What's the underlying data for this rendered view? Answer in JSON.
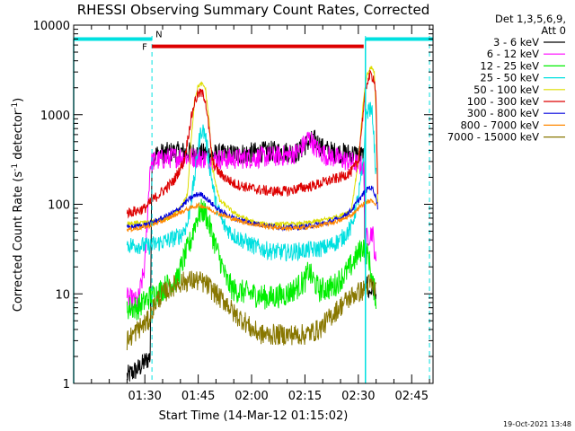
{
  "chart_data": {
    "type": "line",
    "title": "RHESSI Observing Summary Count Rates, Corrected",
    "xlabel": "Start Time (14-Mar-12 01:15:02)",
    "ylabel_main": "Corrected Count Rate (s",
    "ylabel_sup1": "-1",
    "ylabel_mid": " detector",
    "ylabel_sup2": "-1",
    "ylabel_end": ")",
    "yscale": "log",
    "ylim": [
      1,
      10000
    ],
    "xlim_minutes": [
      -5,
      96
    ],
    "x_units": "minutes after 01:15:02",
    "y_ticks": [
      {
        "value": 1,
        "label": "1"
      },
      {
        "value": 10,
        "label": "10"
      },
      {
        "value": 100,
        "label": "100"
      },
      {
        "value": 1000,
        "label": "1000"
      },
      {
        "value": 10000,
        "label": "10000"
      }
    ],
    "x_ticks": [
      {
        "minute": 15,
        "label": "01:30"
      },
      {
        "minute": 30,
        "label": "01:45"
      },
      {
        "minute": 45,
        "label": "02:00"
      },
      {
        "minute": 60,
        "label": "02:15"
      },
      {
        "minute": 75,
        "label": "02:30"
      },
      {
        "minute": 90,
        "label": "02:45"
      }
    ],
    "legend_title": [
      "Det 1,3,5,6,9,",
      "Att 0"
    ],
    "timestamp": "19-Oct-2021 13:48",
    "flags": {
      "night_label": "N",
      "night_color": "#00e0e0",
      "night_bars": [
        [
          -5,
          17
        ],
        [
          77,
          96
        ]
      ],
      "night_value": 7000,
      "flare_label": "F",
      "flare_color": "#dd0000",
      "flare_bar": [
        17,
        76.5
      ],
      "flare_value": 5800,
      "boundaries": [
        17,
        77,
        95
      ]
    },
    "series": [
      {
        "name": "3 - 6 keV",
        "color": "#000000",
        "noise": 0.12,
        "points": [
          [
            10,
            1.2
          ],
          [
            13.5,
            1.5
          ],
          [
            16.5,
            2
          ],
          [
            17,
            330
          ],
          [
            18,
            360
          ],
          [
            22,
            380
          ],
          [
            25,
            385
          ],
          [
            27,
            380
          ],
          [
            30,
            370
          ],
          [
            35,
            360
          ],
          [
            40,
            360
          ],
          [
            45,
            375
          ],
          [
            50,
            390
          ],
          [
            55,
            385
          ],
          [
            58,
            380
          ],
          [
            61,
            500
          ],
          [
            63,
            520
          ],
          [
            65,
            420
          ],
          [
            68,
            380
          ],
          [
            72,
            370
          ],
          [
            75,
            360
          ],
          [
            76.5,
            340
          ],
          [
            77,
            15
          ],
          [
            78,
            10
          ],
          [
            79,
            12
          ],
          [
            80,
            11
          ]
        ]
      },
      {
        "name": "6 - 12 keV",
        "color": "#ff00ff",
        "noise": 0.12,
        "points": [
          [
            10,
            9
          ],
          [
            13,
            8
          ],
          [
            15,
            20
          ],
          [
            16.5,
            280
          ],
          [
            17,
            300
          ],
          [
            22,
            330
          ],
          [
            25,
            340
          ],
          [
            28,
            335
          ],
          [
            32,
            325
          ],
          [
            35,
            320
          ],
          [
            40,
            320
          ],
          [
            45,
            330
          ],
          [
            50,
            340
          ],
          [
            55,
            350
          ],
          [
            58,
            380
          ],
          [
            60,
            480
          ],
          [
            61,
            560
          ],
          [
            62,
            500
          ],
          [
            63,
            420
          ],
          [
            66,
            350
          ],
          [
            70,
            320
          ],
          [
            74,
            290
          ],
          [
            76.5,
            260
          ],
          [
            77,
            40
          ],
          [
            78,
            45
          ],
          [
            79,
            50
          ],
          [
            80,
            20
          ]
        ]
      },
      {
        "name": "12 - 25 keV",
        "color": "#00ee00",
        "noise": 0.14,
        "points": [
          [
            10,
            7
          ],
          [
            13,
            7
          ],
          [
            16,
            9
          ],
          [
            18,
            10
          ],
          [
            22,
            13
          ],
          [
            24,
            14
          ],
          [
            26,
            25
          ],
          [
            28,
            40
          ],
          [
            29,
            60
          ],
          [
            30,
            75
          ],
          [
            31,
            85
          ],
          [
            32,
            80
          ],
          [
            34,
            45
          ],
          [
            36,
            25
          ],
          [
            38,
            14
          ],
          [
            40,
            11
          ],
          [
            45,
            10
          ],
          [
            50,
            9
          ],
          [
            55,
            10
          ],
          [
            58,
            12
          ],
          [
            60,
            14
          ],
          [
            61,
            18
          ],
          [
            62,
            15
          ],
          [
            64,
            11
          ],
          [
            68,
            12
          ],
          [
            72,
            18
          ],
          [
            75,
            28
          ],
          [
            76.5,
            35
          ],
          [
            78,
            25
          ],
          [
            79,
            13
          ],
          [
            80,
            9
          ]
        ]
      },
      {
        "name": "25 - 50 keV",
        "color": "#00e0e0",
        "noise": 0.1,
        "points": [
          [
            10,
            35
          ],
          [
            13,
            35
          ],
          [
            16,
            34
          ],
          [
            18,
            36
          ],
          [
            22,
            40
          ],
          [
            25,
            45
          ],
          [
            27,
            60
          ],
          [
            29,
            200
          ],
          [
            30,
            450
          ],
          [
            31,
            700
          ],
          [
            32,
            600
          ],
          [
            33,
            300
          ],
          [
            35,
            100
          ],
          [
            37,
            60
          ],
          [
            40,
            45
          ],
          [
            45,
            35
          ],
          [
            50,
            30
          ],
          [
            55,
            29
          ],
          [
            58,
            30
          ],
          [
            62,
            31
          ],
          [
            66,
            33
          ],
          [
            70,
            40
          ],
          [
            73,
            55
          ],
          [
            75,
            120
          ],
          [
            76.5,
            300
          ],
          [
            77,
            900
          ],
          [
            78,
            1200
          ],
          [
            79,
            1000
          ],
          [
            80,
            200
          ]
        ]
      },
      {
        "name": "50 - 100 keV",
        "color": "#dddd00",
        "noise": 0.025,
        "points": [
          [
            10,
            60
          ],
          [
            13,
            62
          ],
          [
            16,
            63
          ],
          [
            18,
            65
          ],
          [
            22,
            70
          ],
          [
            25,
            90
          ],
          [
            27,
            130
          ],
          [
            28,
            500
          ],
          [
            29,
            1500
          ],
          [
            30,
            2100
          ],
          [
            31,
            2200
          ],
          [
            32,
            2000
          ],
          [
            33,
            900
          ],
          [
            34,
            250
          ],
          [
            36,
            110
          ],
          [
            38,
            95
          ],
          [
            40,
            80
          ],
          [
            43,
            70
          ],
          [
            46,
            62
          ],
          [
            50,
            60
          ],
          [
            55,
            60
          ],
          [
            58,
            60
          ],
          [
            62,
            63
          ],
          [
            66,
            68
          ],
          [
            70,
            75
          ],
          [
            73,
            85
          ],
          [
            75,
            300
          ],
          [
            76.5,
            1500
          ],
          [
            77.5,
            2800
          ],
          [
            78.5,
            3400
          ],
          [
            79.5,
            3000
          ],
          [
            80,
            1000
          ],
          [
            80.5,
            80
          ]
        ]
      },
      {
        "name": "100 - 300 keV",
        "color": "#dd0000",
        "noise": 0.06,
        "points": [
          [
            10,
            80
          ],
          [
            13,
            85
          ],
          [
            15,
            90
          ],
          [
            17,
            110
          ],
          [
            20,
            140
          ],
          [
            23,
            180
          ],
          [
            26,
            300
          ],
          [
            28,
            900
          ],
          [
            29,
            1400
          ],
          [
            30,
            1700
          ],
          [
            31,
            1750
          ],
          [
            32,
            1500
          ],
          [
            33,
            700
          ],
          [
            34,
            300
          ],
          [
            36,
            220
          ],
          [
            40,
            170
          ],
          [
            45,
            150
          ],
          [
            50,
            140
          ],
          [
            55,
            140
          ],
          [
            58,
            150
          ],
          [
            62,
            160
          ],
          [
            66,
            180
          ],
          [
            70,
            200
          ],
          [
            73,
            230
          ],
          [
            75,
            300
          ],
          [
            76.5,
            1200
          ],
          [
            77.5,
            2400
          ],
          [
            78.5,
            2800
          ],
          [
            79.5,
            2500
          ],
          [
            80,
            1500
          ],
          [
            80.5,
            90
          ]
        ]
      },
      {
        "name": "300 - 800 keV",
        "color": "#0000dd",
        "noise": 0.03,
        "points": [
          [
            10,
            55
          ],
          [
            13,
            57
          ],
          [
            16,
            60
          ],
          [
            20,
            70
          ],
          [
            24,
            85
          ],
          [
            27,
            110
          ],
          [
            29,
            125
          ],
          [
            30,
            130
          ],
          [
            31,
            128
          ],
          [
            32,
            120
          ],
          [
            34,
            100
          ],
          [
            36,
            85
          ],
          [
            40,
            70
          ],
          [
            45,
            62
          ],
          [
            50,
            57
          ],
          [
            55,
            55
          ],
          [
            58,
            55
          ],
          [
            62,
            58
          ],
          [
            66,
            62
          ],
          [
            70,
            70
          ],
          [
            73,
            85
          ],
          [
            75,
            110
          ],
          [
            77,
            140
          ],
          [
            78,
            155
          ],
          [
            79,
            150
          ],
          [
            80,
            120
          ],
          [
            80.5,
            90
          ]
        ]
      },
      {
        "name": "800 - 7000 keV",
        "color": "#ff8800",
        "noise": 0.025,
        "points": [
          [
            10,
            52
          ],
          [
            13,
            54
          ],
          [
            16,
            57
          ],
          [
            20,
            65
          ],
          [
            24,
            78
          ],
          [
            27,
            88
          ],
          [
            29,
            95
          ],
          [
            30,
            97
          ],
          [
            31,
            96
          ],
          [
            32,
            93
          ],
          [
            34,
            85
          ],
          [
            36,
            78
          ],
          [
            40,
            68
          ],
          [
            45,
            60
          ],
          [
            50,
            56
          ],
          [
            55,
            54
          ],
          [
            58,
            54
          ],
          [
            62,
            56
          ],
          [
            66,
            60
          ],
          [
            70,
            66
          ],
          [
            73,
            75
          ],
          [
            75,
            90
          ],
          [
            77,
            105
          ],
          [
            79,
            110
          ],
          [
            80,
            100
          ]
        ]
      },
      {
        "name": "7000 - 15000 keV",
        "color": "#887700",
        "noise": 0.12,
        "points": [
          [
            10,
            3
          ],
          [
            13,
            4
          ],
          [
            16,
            5
          ],
          [
            18,
            8
          ],
          [
            20,
            10
          ],
          [
            24,
            13
          ],
          [
            27,
            14
          ],
          [
            30,
            14
          ],
          [
            32,
            13
          ],
          [
            34,
            11
          ],
          [
            36,
            9
          ],
          [
            38,
            8
          ],
          [
            40,
            6
          ],
          [
            43,
            5
          ],
          [
            45,
            4
          ],
          [
            48,
            3.5
          ],
          [
            52,
            3.5
          ],
          [
            56,
            3.5
          ],
          [
            60,
            3.5
          ],
          [
            64,
            4
          ],
          [
            68,
            6
          ],
          [
            71,
            8
          ],
          [
            74,
            10
          ],
          [
            76.5,
            11
          ],
          [
            78,
            13
          ],
          [
            79,
            12
          ],
          [
            80,
            11
          ]
        ]
      }
    ]
  }
}
